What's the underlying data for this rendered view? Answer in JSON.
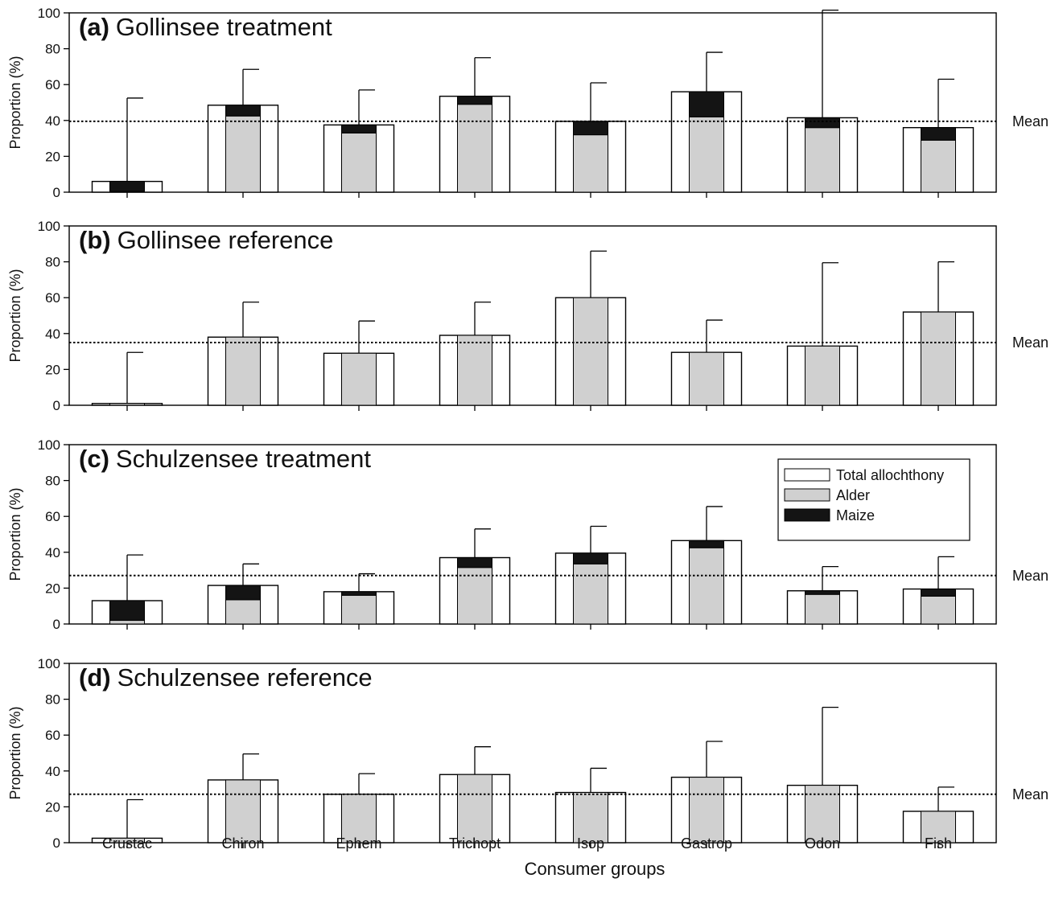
{
  "chart_data": [
    {
      "type": "bar",
      "panel_letter": "(a)",
      "title": "Gollinsee treatment",
      "ylabel": "Proportion (%)",
      "ylim": [
        0,
        100
      ],
      "yticks": [
        0,
        20,
        40,
        60,
        80,
        100
      ],
      "categories": [
        "Crustac",
        "Chiron",
        "Ephem",
        "Trichopt",
        "Isop",
        "Gastrop",
        "Odon",
        "Fish"
      ],
      "series": [
        {
          "name": "Total allochthony",
          "values": [
            6,
            48.5,
            37.5,
            53.5,
            39.5,
            56,
            41.5,
            36
          ]
        },
        {
          "name": "Alder",
          "values": [
            0.5,
            42.5,
            33,
            49,
            32,
            42,
            36,
            29
          ]
        },
        {
          "name": "Maize",
          "values": [
            5.5,
            6,
            4.5,
            4.5,
            7.5,
            14,
            5.5,
            7
          ]
        }
      ],
      "error_upper": [
        52.5,
        68.5,
        57,
        75,
        61,
        78,
        101.5,
        63
      ],
      "mean": 39.5,
      "mean_label": "Mean"
    },
    {
      "type": "bar",
      "panel_letter": "(b)",
      "title": "Gollinsee reference",
      "ylabel": "Proportion (%)",
      "ylim": [
        0,
        100
      ],
      "yticks": [
        0,
        20,
        40,
        60,
        80,
        100
      ],
      "categories": [
        "Crustac",
        "Chiron",
        "Ephem",
        "Trichopt",
        "Isop",
        "Gastrop",
        "Odon",
        "Fish"
      ],
      "series": [
        {
          "name": "Total allochthony",
          "values": [
            1,
            38,
            29,
            39,
            60,
            29.5,
            33,
            52
          ]
        },
        {
          "name": "Alder",
          "values": [
            1,
            38,
            29,
            39,
            60,
            29.5,
            33,
            52
          ]
        },
        {
          "name": "Maize",
          "values": [
            0,
            0,
            0,
            0,
            0,
            0,
            0,
            0
          ]
        }
      ],
      "error_upper": [
        29.5,
        57.5,
        47,
        57.5,
        86,
        47.5,
        79.5,
        80
      ],
      "mean": 35,
      "mean_label": "Mean"
    },
    {
      "type": "bar",
      "panel_letter": "(c)",
      "title": "Schulzensee treatment",
      "ylabel": "Proportion (%)",
      "ylim": [
        0,
        100
      ],
      "yticks": [
        0,
        20,
        40,
        60,
        80,
        100
      ],
      "categories": [
        "Crustac",
        "Chiron",
        "Ephem",
        "Trichopt",
        "Isop",
        "Gastrop",
        "Odon",
        "Fish"
      ],
      "series": [
        {
          "name": "Total allochthony",
          "values": [
            13,
            21.5,
            18,
            37,
            39.5,
            46.5,
            18.5,
            19.5
          ]
        },
        {
          "name": "Alder",
          "values": [
            2,
            13.5,
            16,
            31.5,
            33.5,
            42.5,
            16.5,
            15.5
          ]
        },
        {
          "name": "Maize",
          "values": [
            11,
            8,
            2,
            5.5,
            6,
            4,
            2,
            4
          ]
        }
      ],
      "error_upper": [
        38.5,
        33.5,
        28,
        53,
        54.5,
        65.5,
        32,
        37.5
      ],
      "mean": 27,
      "mean_label": "Mean",
      "legend": {
        "position": "top-right",
        "entries": [
          {
            "label": "Total allochthony",
            "color": "#ffffff"
          },
          {
            "label": "Alder",
            "color": "#d0d0d0"
          },
          {
            "label": "Maize",
            "color": "#141414"
          }
        ]
      }
    },
    {
      "type": "bar",
      "panel_letter": "(d)",
      "title": "Schulzensee reference",
      "ylabel": "Proportion (%)",
      "ylim": [
        0,
        100
      ],
      "yticks": [
        0,
        20,
        40,
        60,
        80,
        100
      ],
      "categories": [
        "Crustac",
        "Chiron",
        "Ephem",
        "Trichopt",
        "Isop",
        "Gastrop",
        "Odon",
        "Fish"
      ],
      "series": [
        {
          "name": "Total allochthony",
          "values": [
            2.5,
            35,
            27,
            38,
            28,
            36.5,
            32,
            17.5
          ]
        },
        {
          "name": "Alder",
          "values": [
            2.5,
            35,
            27,
            38,
            28,
            36.5,
            32,
            17.5
          ]
        },
        {
          "name": "Maize",
          "values": [
            0,
            0,
            0,
            0,
            0,
            0,
            0,
            0
          ]
        }
      ],
      "error_upper": [
        24,
        49.5,
        38.5,
        53.5,
        41.5,
        56.5,
        75.5,
        31
      ],
      "mean": 27,
      "mean_label": "Mean"
    }
  ],
  "xlabel": "Consumer groups",
  "colors": {
    "total": "#ffffff",
    "alder": "#d0d0d0",
    "maize": "#141414",
    "axes": "#000000"
  }
}
